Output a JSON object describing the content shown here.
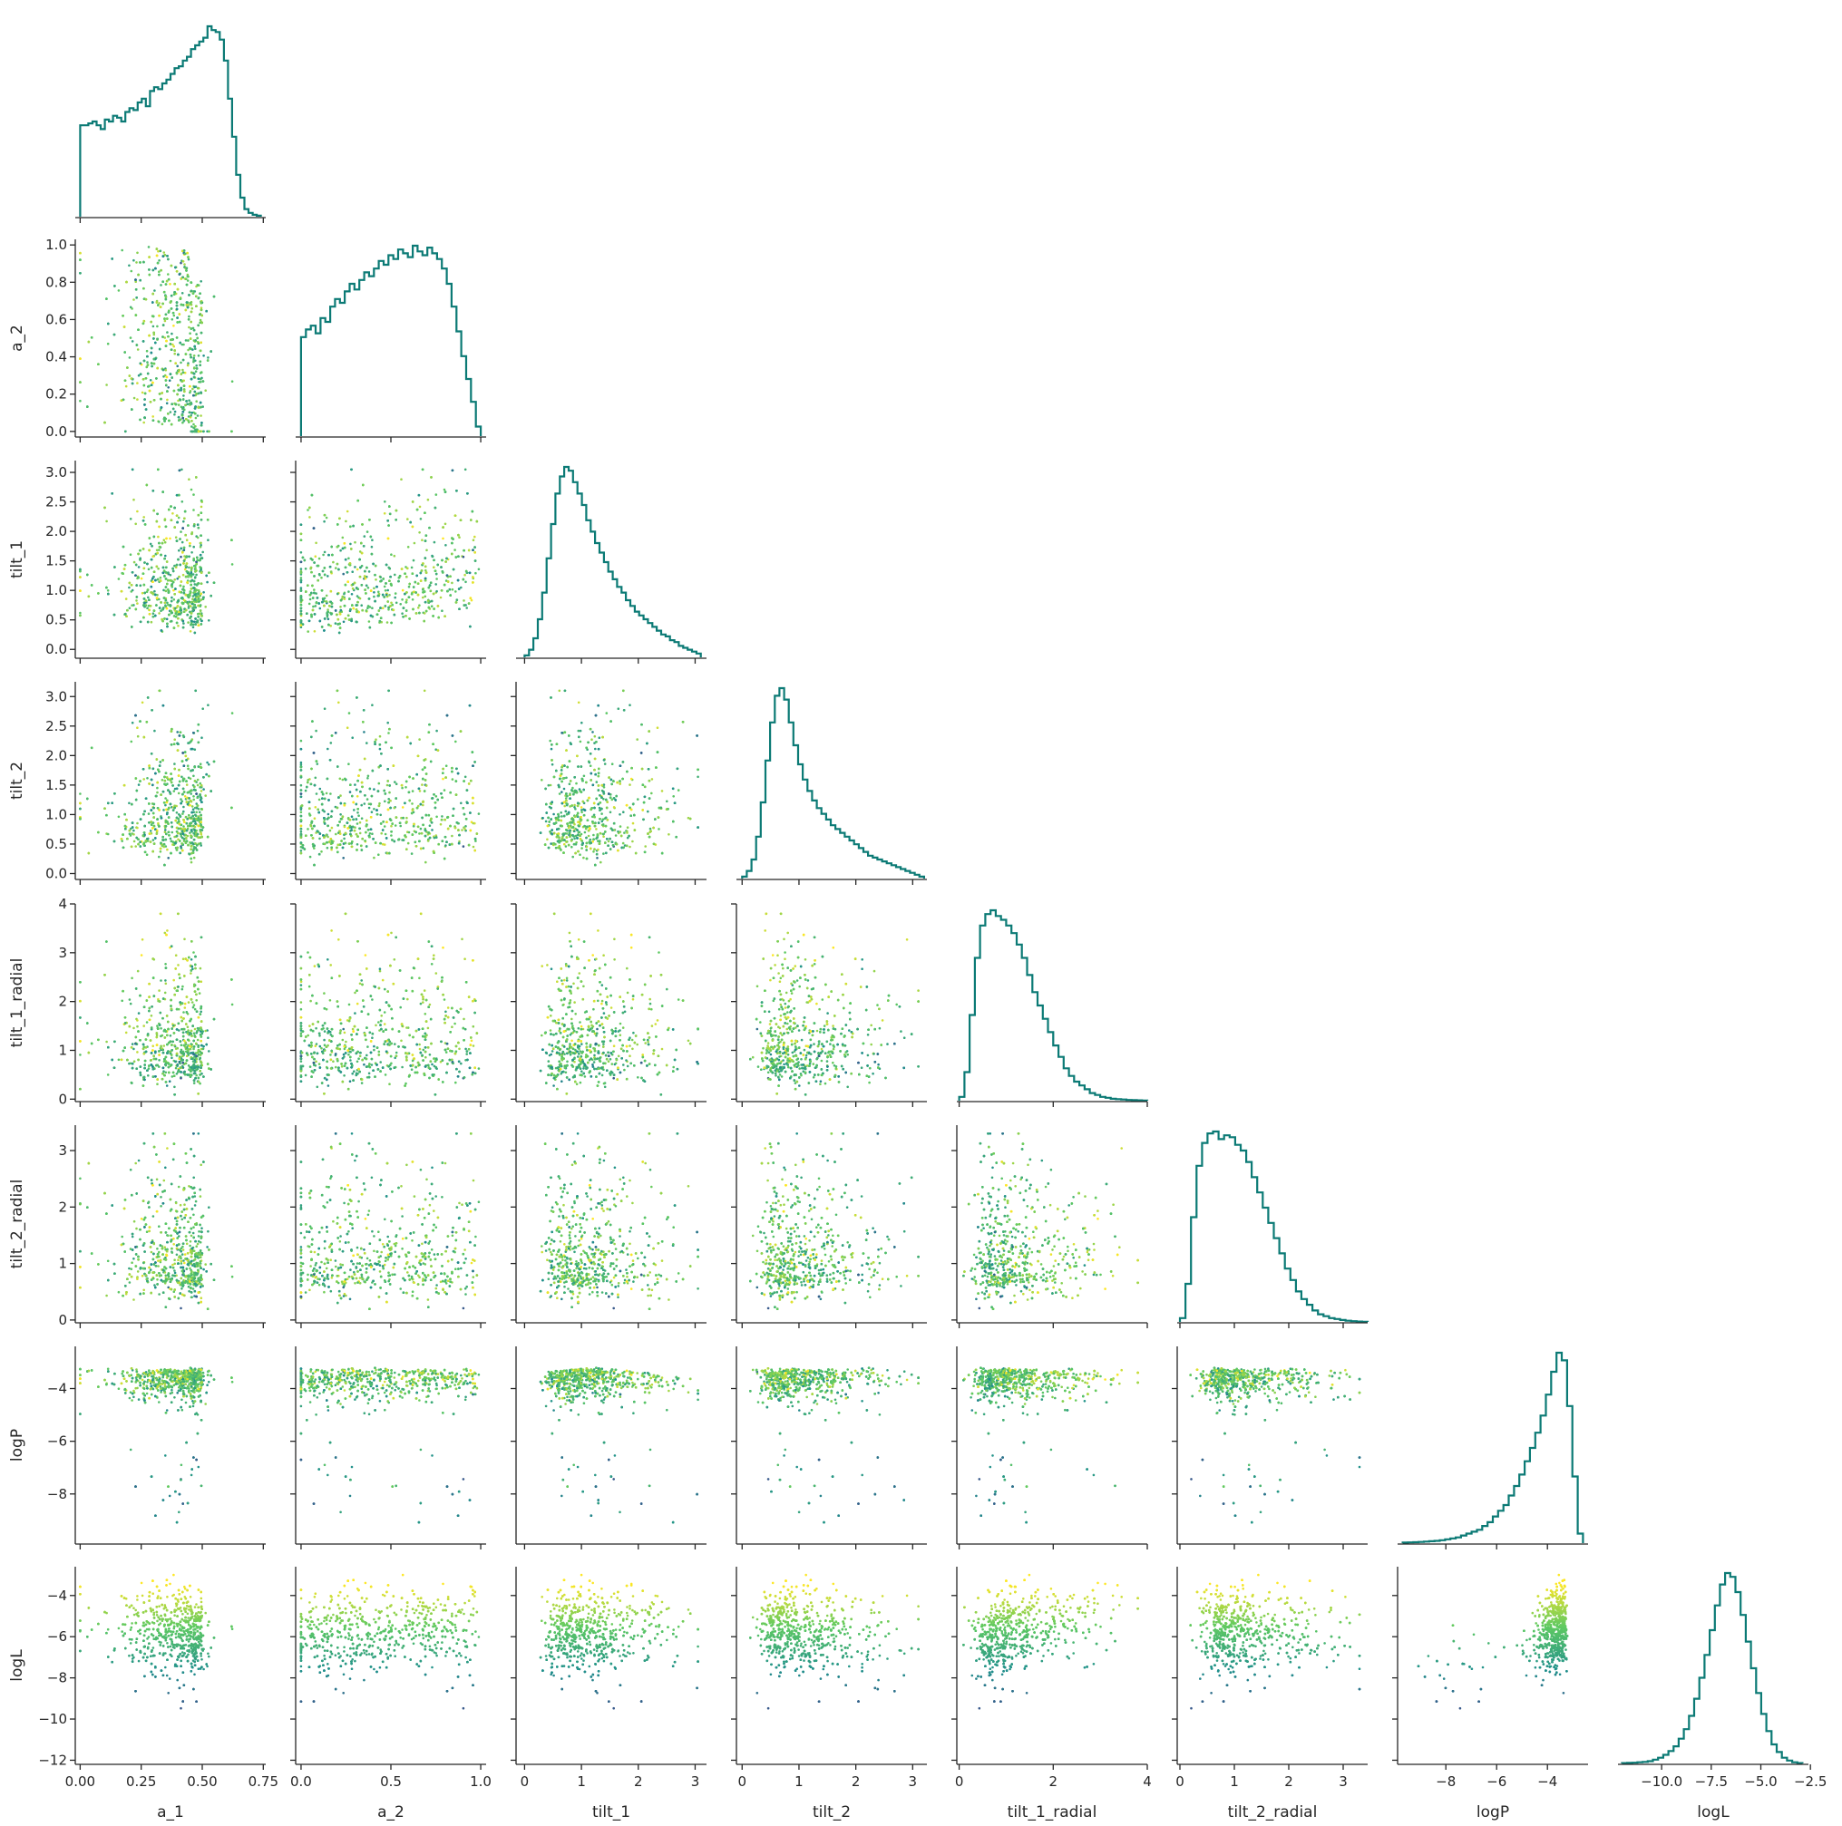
{
  "chart_data": {
    "type": "scatter",
    "layout": "corner-pairplot",
    "variables": [
      "a_1",
      "a_2",
      "tilt_1",
      "tilt_2",
      "tilt_1_radial",
      "tilt_2_radial",
      "logP",
      "logL"
    ],
    "xlabels": [
      "a_1",
      "a_2",
      "tilt_1",
      "tilt_2",
      "tilt_1_radial",
      "tilt_2_radial",
      "logP",
      "logL"
    ],
    "ylabels": [
      "",
      "a_2",
      "tilt_1",
      "tilt_2",
      "tilt_1_radial",
      "tilt_2_radial",
      "logP",
      "logL"
    ],
    "ranges": {
      "a_1": [
        -0.02,
        0.76
      ],
      "a_2": [
        -0.03,
        1.03
      ],
      "tilt_1": [
        -0.15,
        3.2
      ],
      "tilt_2": [
        -0.1,
        3.25
      ],
      "tilt_1_radial": [
        -0.05,
        4.0
      ],
      "tilt_2_radial": [
        -0.05,
        3.45
      ],
      "logP": [
        -9.9,
        -2.4
      ],
      "logL": [
        -12.2,
        -2.6
      ]
    },
    "ticks": {
      "a_1": {
        "values": [
          0.0,
          0.25,
          0.5,
          0.75
        ],
        "labels": [
          "0.00",
          "0.25",
          "0.50",
          "0.75"
        ]
      },
      "a_2": {
        "values": [
          0.0,
          0.2,
          0.4,
          0.6,
          0.8,
          1.0
        ],
        "labels": [
          "0.0",
          "0.2",
          "0.4",
          "0.6",
          "0.8",
          "1.0"
        ]
      },
      "a_2_x": {
        "values": [
          0.0,
          0.5,
          1.0
        ],
        "labels": [
          "0.0",
          "0.5",
          "1.0"
        ]
      },
      "tilt_1": {
        "values": [
          0.0,
          0.5,
          1.0,
          1.5,
          2.0,
          2.5,
          3.0
        ],
        "labels": [
          "0.0",
          "0.5",
          "1.0",
          "1.5",
          "2.0",
          "2.5",
          "3.0"
        ]
      },
      "tilt_1_x": {
        "values": [
          0,
          1,
          2,
          3
        ],
        "labels": [
          "0",
          "1",
          "2",
          "3"
        ]
      },
      "tilt_2": {
        "values": [
          0.0,
          0.5,
          1.0,
          1.5,
          2.0,
          2.5,
          3.0
        ],
        "labels": [
          "0.0",
          "0.5",
          "1.0",
          "1.5",
          "2.0",
          "2.5",
          "3.0"
        ]
      },
      "tilt_2_x": {
        "values": [
          0,
          1,
          2,
          3
        ],
        "labels": [
          "0",
          "1",
          "2",
          "3"
        ]
      },
      "tilt_1_radial": {
        "values": [
          0,
          1,
          2,
          3,
          4
        ],
        "labels": [
          "0",
          "1",
          "2",
          "3",
          "4"
        ]
      },
      "tilt_1_radial_x": {
        "values": [
          0,
          2,
          4
        ],
        "labels": [
          "0",
          "2",
          "4"
        ]
      },
      "tilt_2_radial": {
        "values": [
          0,
          1,
          2,
          3
        ],
        "labels": [
          "0",
          "1",
          "2",
          "3"
        ]
      },
      "logP": {
        "values": [
          -8,
          -6,
          -4
        ],
        "labels": [
          "−8",
          "−6",
          "−4"
        ]
      },
      "logL": {
        "values": [
          -12,
          -10,
          -8,
          -6,
          -4
        ],
        "labels": [
          "−12",
          "−10",
          "−8",
          "−6",
          "−4"
        ]
      },
      "logL_x": {
        "values": [
          -10.0,
          -7.5,
          -5.0,
          -2.5
        ],
        "labels": [
          "−10.0",
          "−7.5",
          "−5.0",
          "−2.5"
        ]
      }
    },
    "xtick_keys": [
      "a_1",
      "a_2_x",
      "tilt_1_x",
      "tilt_2_x",
      "tilt_1_radial_x",
      "tilt_2_radial",
      "logP",
      "logL_x"
    ],
    "ytick_keys": [
      "a_1",
      "a_2",
      "tilt_1",
      "tilt_2",
      "tilt_1_radial",
      "tilt_2_radial",
      "logP",
      "logL"
    ],
    "diagonal_histograms": [
      {
        "variable": "a_1",
        "bins": [
          0.0,
          0.74
        ],
        "counts": [
          0.48,
          0.48,
          0.49,
          0.5,
          0.48,
          0.46,
          0.51,
          0.5,
          0.53,
          0.52,
          0.5,
          0.55,
          0.57,
          0.56,
          0.6,
          0.62,
          0.58,
          0.66,
          0.68,
          0.67,
          0.7,
          0.72,
          0.75,
          0.78,
          0.79,
          0.82,
          0.84,
          0.88,
          0.9,
          0.92,
          0.94,
          1.0,
          0.98,
          0.97,
          0.93,
          0.82,
          0.62,
          0.42,
          0.22,
          0.1,
          0.04,
          0.02,
          0.01,
          0.005
        ]
      },
      {
        "variable": "a_2",
        "bins": [
          0.0,
          1.0
        ],
        "counts": [
          0.52,
          0.56,
          0.58,
          0.54,
          0.62,
          0.6,
          0.68,
          0.72,
          0.7,
          0.76,
          0.8,
          0.77,
          0.82,
          0.86,
          0.84,
          0.88,
          0.92,
          0.9,
          0.95,
          0.93,
          0.98,
          0.96,
          0.94,
          1.0,
          0.97,
          0.95,
          0.99,
          0.96,
          0.93,
          0.88,
          0.8,
          0.68,
          0.55,
          0.42,
          0.3,
          0.18,
          0.05
        ]
      },
      {
        "variable": "tilt_1",
        "bins": [
          0.0,
          3.1
        ],
        "counts": [
          0.01,
          0.04,
          0.1,
          0.2,
          0.34,
          0.52,
          0.7,
          0.86,
          0.95,
          1.0,
          0.98,
          0.92,
          0.86,
          0.8,
          0.72,
          0.66,
          0.6,
          0.55,
          0.5,
          0.45,
          0.41,
          0.37,
          0.34,
          0.3,
          0.27,
          0.24,
          0.22,
          0.2,
          0.18,
          0.16,
          0.14,
          0.12,
          0.11,
          0.09,
          0.08,
          0.06,
          0.05,
          0.04,
          0.03,
          0.02
        ]
      },
      {
        "variable": "tilt_2",
        "bins": [
          0.0,
          3.2
        ],
        "counts": [
          0.01,
          0.04,
          0.1,
          0.22,
          0.4,
          0.62,
          0.82,
          0.96,
          1.0,
          0.94,
          0.82,
          0.7,
          0.6,
          0.52,
          0.46,
          0.41,
          0.37,
          0.34,
          0.31,
          0.28,
          0.26,
          0.24,
          0.22,
          0.2,
          0.18,
          0.16,
          0.14,
          0.12,
          0.11,
          0.1,
          0.09,
          0.08,
          0.07,
          0.06,
          0.05,
          0.04,
          0.03,
          0.02,
          0.01
        ]
      },
      {
        "variable": "tilt_1_radial",
        "bins": [
          0.0,
          4.0
        ],
        "counts": [
          0.02,
          0.15,
          0.45,
          0.75,
          0.92,
          0.98,
          1.0,
          0.97,
          0.95,
          0.92,
          0.88,
          0.82,
          0.75,
          0.66,
          0.57,
          0.5,
          0.43,
          0.36,
          0.29,
          0.23,
          0.17,
          0.13,
          0.1,
          0.08,
          0.06,
          0.04,
          0.03,
          0.02,
          0.015,
          0.01,
          0.008,
          0.006,
          0.004,
          0.003,
          0.002,
          0.001
        ]
      },
      {
        "variable": "tilt_2_radial",
        "bins": [
          0.0,
          3.45
        ],
        "counts": [
          0.02,
          0.2,
          0.55,
          0.82,
          0.94,
          0.99,
          1.0,
          0.96,
          0.98,
          0.97,
          0.93,
          0.9,
          0.84,
          0.76,
          0.68,
          0.6,
          0.52,
          0.44,
          0.36,
          0.28,
          0.22,
          0.16,
          0.12,
          0.09,
          0.06,
          0.04,
          0.03,
          0.02,
          0.015,
          0.01,
          0.006,
          0.004,
          0.002,
          0.001
        ]
      },
      {
        "variable": "logP",
        "bins": [
          -9.7,
          -2.6
        ],
        "counts": [
          0.003,
          0.004,
          0.005,
          0.006,
          0.008,
          0.01,
          0.012,
          0.015,
          0.02,
          0.025,
          0.03,
          0.04,
          0.05,
          0.06,
          0.07,
          0.09,
          0.11,
          0.14,
          0.17,
          0.2,
          0.25,
          0.3,
          0.36,
          0.43,
          0.5,
          0.58,
          0.67,
          0.78,
          0.9,
          1.0,
          0.96,
          0.72,
          0.35,
          0.05
        ]
      },
      {
        "variable": "logL",
        "bins": [
          -12.0,
          -2.9
        ],
        "counts": [
          0.002,
          0.003,
          0.004,
          0.006,
          0.008,
          0.012,
          0.02,
          0.03,
          0.045,
          0.065,
          0.09,
          0.13,
          0.18,
          0.25,
          0.34,
          0.45,
          0.57,
          0.7,
          0.83,
          0.94,
          1.0,
          0.98,
          0.9,
          0.78,
          0.64,
          0.5,
          0.37,
          0.26,
          0.17,
          0.1,
          0.06,
          0.03,
          0.015,
          0.006,
          0.002
        ]
      }
    ],
    "color_by": "logL",
    "colormap": [
      "#440154",
      "#3b528b",
      "#21918c",
      "#5ec962",
      "#fde725"
    ],
    "histogram_color": "#0b7a75",
    "grid": false,
    "legend": "none"
  }
}
